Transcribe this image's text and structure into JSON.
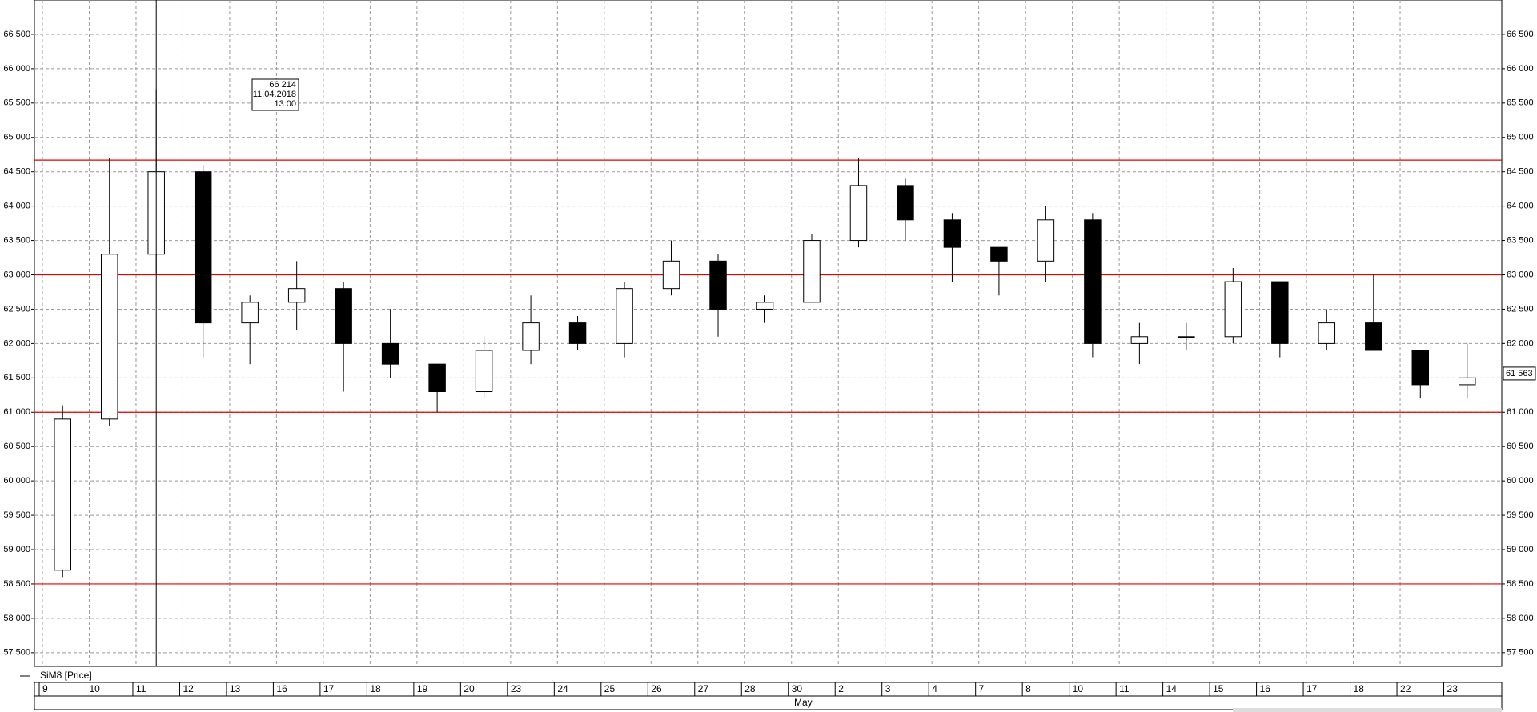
{
  "chart_data": {
    "type": "candlestick",
    "series_name": "SiM8 [Price]",
    "categories": [
      "9",
      "10",
      "11",
      "12",
      "13",
      "16",
      "17",
      "18",
      "19",
      "20",
      "23",
      "24",
      "25",
      "26",
      "27",
      "28",
      "30",
      "2",
      "3",
      "4",
      "7",
      "8",
      "10",
      "11",
      "14",
      "15",
      "16",
      "17",
      "18",
      "22",
      "23"
    ],
    "month_label": "May",
    "open": [
      58700,
      60900,
      63300,
      64500,
      62300,
      62600,
      62800,
      62000,
      61700,
      61300,
      61900,
      62300,
      62000,
      62800,
      63200,
      62500,
      62600,
      63500,
      64300,
      63800,
      63400,
      63200,
      63800,
      62000,
      62100,
      62100,
      62900,
      62000,
      62300,
      61900,
      61400
    ],
    "high": [
      61100,
      64700,
      65700,
      64600,
      62700,
      63200,
      62900,
      62500,
      61700,
      62100,
      62700,
      62400,
      62900,
      63500,
      63300,
      62700,
      63600,
      64700,
      64400,
      63900,
      63400,
      64000,
      63900,
      62300,
      62300,
      63100,
      62900,
      62500,
      63000,
      61900,
      62000
    ],
    "low": [
      58600,
      60800,
      63000,
      61800,
      61700,
      62200,
      61300,
      61500,
      61000,
      61200,
      61700,
      61900,
      61800,
      62700,
      62100,
      62300,
      62600,
      63400,
      63500,
      62900,
      62700,
      62900,
      61800,
      61700,
      61900,
      62000,
      61800,
      61900,
      61900,
      61200,
      61200
    ],
    "close": [
      60900,
      63300,
      64500,
      62300,
      62600,
      62800,
      62000,
      61700,
      61300,
      61900,
      62300,
      62000,
      62800,
      63200,
      62500,
      62600,
      63500,
      64300,
      63800,
      63400,
      63200,
      63800,
      62000,
      62100,
      62100,
      62900,
      62000,
      62300,
      61900,
      61400,
      61500
    ],
    "color": "#000000",
    "ylim": [
      57300,
      67000
    ],
    "yticks": [
      {
        "value": 57500,
        "label": "57 500"
      },
      {
        "value": 58000,
        "label": "58 000"
      },
      {
        "value": 58500,
        "label": "58 500"
      },
      {
        "value": 59000,
        "label": "59 000"
      },
      {
        "value": 59500,
        "label": "59 500"
      },
      {
        "value": 60000,
        "label": "60 000"
      },
      {
        "value": 60500,
        "label": "60 500"
      },
      {
        "value": 61000,
        "label": "61 000"
      },
      {
        "value": 61500,
        "label": "61 500"
      },
      {
        "value": 62000,
        "label": "62 000"
      },
      {
        "value": 62500,
        "label": "62 500"
      },
      {
        "value": 63000,
        "label": "63 000"
      },
      {
        "value": 63500,
        "label": "63 500"
      },
      {
        "value": 64000,
        "label": "64 000"
      },
      {
        "value": 64500,
        "label": "64 500"
      },
      {
        "value": 65000,
        "label": "65 000"
      },
      {
        "value": 65500,
        "label": "65 500"
      },
      {
        "value": 66000,
        "label": "66 000"
      },
      {
        "value": 66500,
        "label": "66 500"
      }
    ],
    "grid": true,
    "levels": [
      {
        "value": 64670,
        "color": "#e00000"
      },
      {
        "value": 63000,
        "color": "#e00000"
      },
      {
        "value": 61000,
        "color": "#e00000"
      },
      {
        "value": 58500,
        "color": "#e00000"
      }
    ],
    "crosshair": {
      "value": 66214,
      "label": "66 214",
      "date": "11.04.2018",
      "time": "13:00"
    },
    "last_price": {
      "value": 61563,
      "label": "61 563"
    }
  }
}
